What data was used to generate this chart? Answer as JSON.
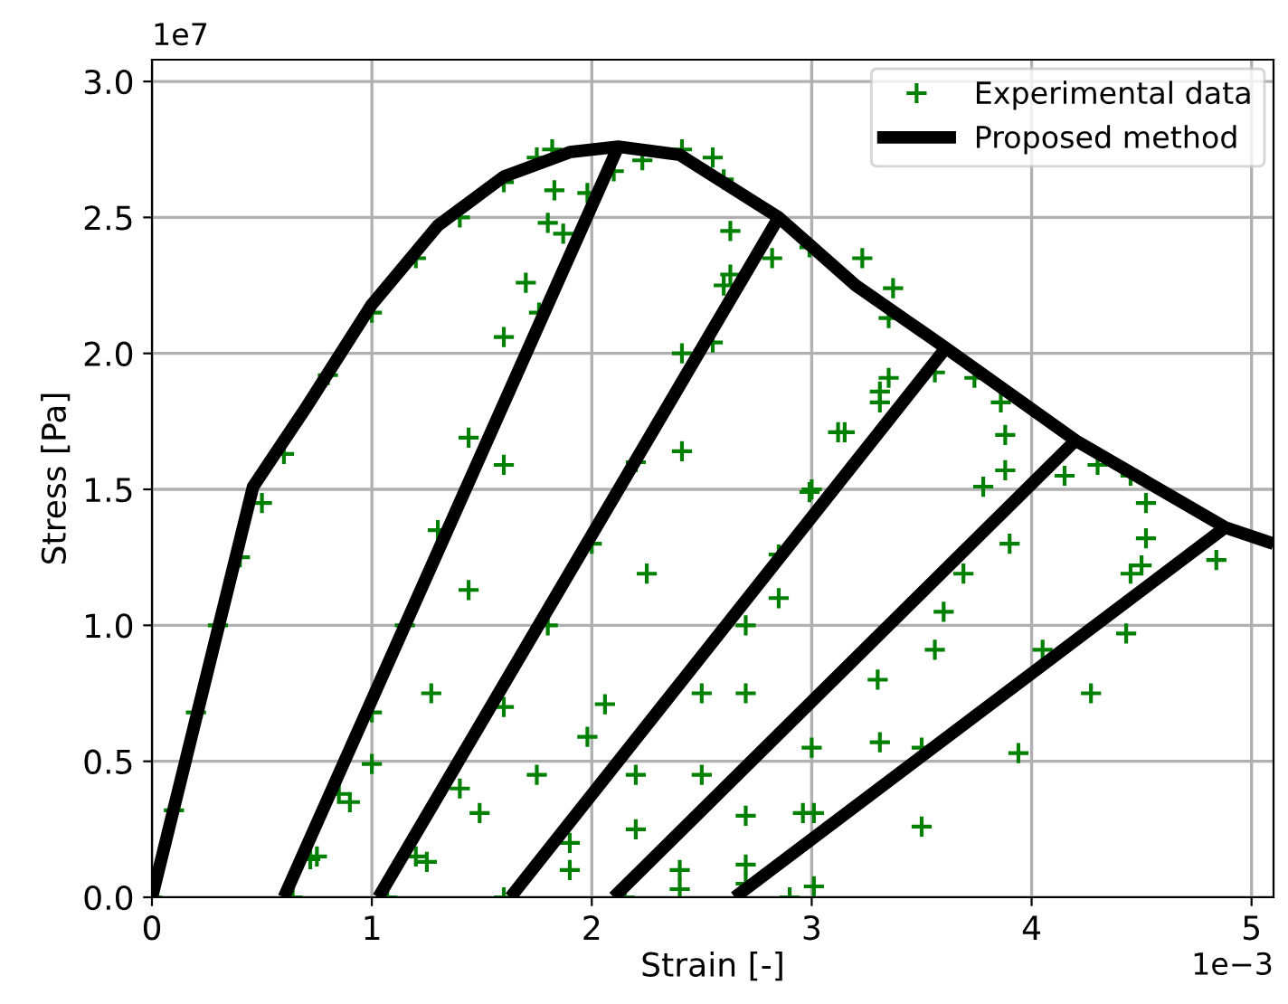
{
  "chart_data": {
    "type": "line",
    "xlabel": "Strain [-]",
    "ylabel": "Stress [Pa]",
    "xlim": [
      0,
      5.1
    ],
    "ylim": [
      0,
      3.08
    ],
    "xticks": [
      0,
      1,
      2,
      3,
      4,
      5
    ],
    "yticks": [
      {
        "value": 0,
        "label": "0.0"
      },
      0.5,
      {
        "value": 1,
        "label": "1.0"
      },
      1.5,
      {
        "value": 2,
        "label": "2.0"
      },
      2.5,
      {
        "value": 3,
        "label": "3.0"
      }
    ],
    "annotations": [
      "1e7",
      "1e−3"
    ],
    "grid": true,
    "legend": "top right",
    "series": [
      {
        "name": "Experimental data",
        "type": "scatter",
        "marker": "cross",
        "color": "#008000",
        "x": [
          0,
          0.1,
          0.2,
          0.3,
          0.4,
          0.5,
          0.6,
          0.8,
          1.0,
          1.2,
          1.4,
          1.6,
          1.75,
          1.82,
          1.83,
          1.8,
          1.7,
          1.6,
          1.44,
          1.3,
          1.15,
          1.0,
          0.85,
          0.72,
          0.64,
          0.75,
          0.9,
          1.0,
          1.27,
          1.44,
          1.6,
          1.76,
          1.87,
          1.98,
          2.1,
          2.23,
          2.41,
          2.55,
          2.6,
          2.63,
          2.63,
          2.55,
          2.41,
          2.25,
          2.06,
          1.98,
          1.75,
          1.49,
          1.25,
          1.07,
          1.2,
          1.4,
          1.6,
          1.8,
          2.0,
          2.2,
          2.41,
          2.6,
          2.82,
          2.99,
          3.23,
          3.37,
          3.35,
          3.35,
          3.31,
          3.15,
          2.99,
          2.85,
          2.7,
          2.5,
          2.2,
          1.9,
          1.6,
          1.9,
          2.2,
          2.5,
          2.7,
          2.85,
          3.0,
          3.12,
          3.31,
          3.56,
          3.74,
          3.86,
          3.88,
          3.88,
          3.78,
          3.69,
          3.56,
          3.31,
          3.01,
          2.7,
          2.4,
          2.15,
          2.4,
          2.7,
          3.0,
          3.3,
          3.6,
          3.9,
          4.15,
          4.3,
          4.45,
          4.52,
          4.52,
          4.5,
          4.43,
          4.27,
          3.94,
          3.5,
          3.01,
          2.9,
          2.7,
          2.96,
          3.5,
          4.05,
          4.45,
          4.84
        ],
        "values": [
          0,
          0.32,
          0.68,
          1.0,
          1.25,
          1.45,
          1.63,
          1.92,
          2.15,
          2.35,
          2.5,
          2.63,
          2.72,
          2.75,
          2.6,
          2.48,
          2.26,
          2.06,
          1.69,
          1.35,
          1.0,
          0.68,
          0.38,
          0.14,
          0,
          0.15,
          0.35,
          0.49,
          0.75,
          1.13,
          1.59,
          2.15,
          2.44,
          2.59,
          2.67,
          2.71,
          2.75,
          2.72,
          2.64,
          2.45,
          2.29,
          2.04,
          1.64,
          1.19,
          0.71,
          0.59,
          0.45,
          0.31,
          0.13,
          0,
          0.15,
          0.4,
          0.7,
          1.0,
          1.3,
          1.6,
          2.0,
          2.25,
          2.35,
          2.39,
          2.35,
          2.24,
          2.13,
          1.91,
          1.82,
          1.71,
          1.49,
          1.1,
          0.75,
          0.45,
          0.25,
          0.1,
          0,
          0.2,
          0.45,
          0.75,
          1.0,
          1.26,
          1.5,
          1.71,
          1.86,
          1.93,
          1.91,
          1.82,
          1.7,
          1.57,
          1.51,
          1.19,
          0.91,
          0.57,
          0.31,
          0.12,
          0.03,
          0,
          0.1,
          0.3,
          0.55,
          0.8,
          1.05,
          1.3,
          1.55,
          1.59,
          1.55,
          1.45,
          1.32,
          1.22,
          0.97,
          0.75,
          0.53,
          0.26,
          0.04,
          0,
          0.05,
          0.31,
          0.55,
          0.91,
          1.19,
          1.24
        ]
      },
      {
        "name": "Proposed method",
        "color": "#000000",
        "x": [
          0,
          0.46,
          0.7,
          1.0,
          1.3,
          1.6,
          1.9,
          2.12,
          2.4,
          2.85,
          3.2,
          3.61,
          4.2,
          4.88,
          5.1,
          null,
          2.12,
          0.6,
          null,
          2.85,
          1.03,
          null,
          3.61,
          1.63,
          null,
          4.2,
          2.1,
          null,
          4.88,
          2.65
        ],
        "values": [
          0,
          1.51,
          1.8,
          2.18,
          2.47,
          2.65,
          2.74,
          2.76,
          2.73,
          2.5,
          2.25,
          2.02,
          1.68,
          1.36,
          1.3,
          null,
          2.76,
          0,
          null,
          2.5,
          0,
          null,
          2.02,
          0,
          null,
          1.68,
          0,
          null,
          1.36,
          0
        ]
      }
    ]
  }
}
